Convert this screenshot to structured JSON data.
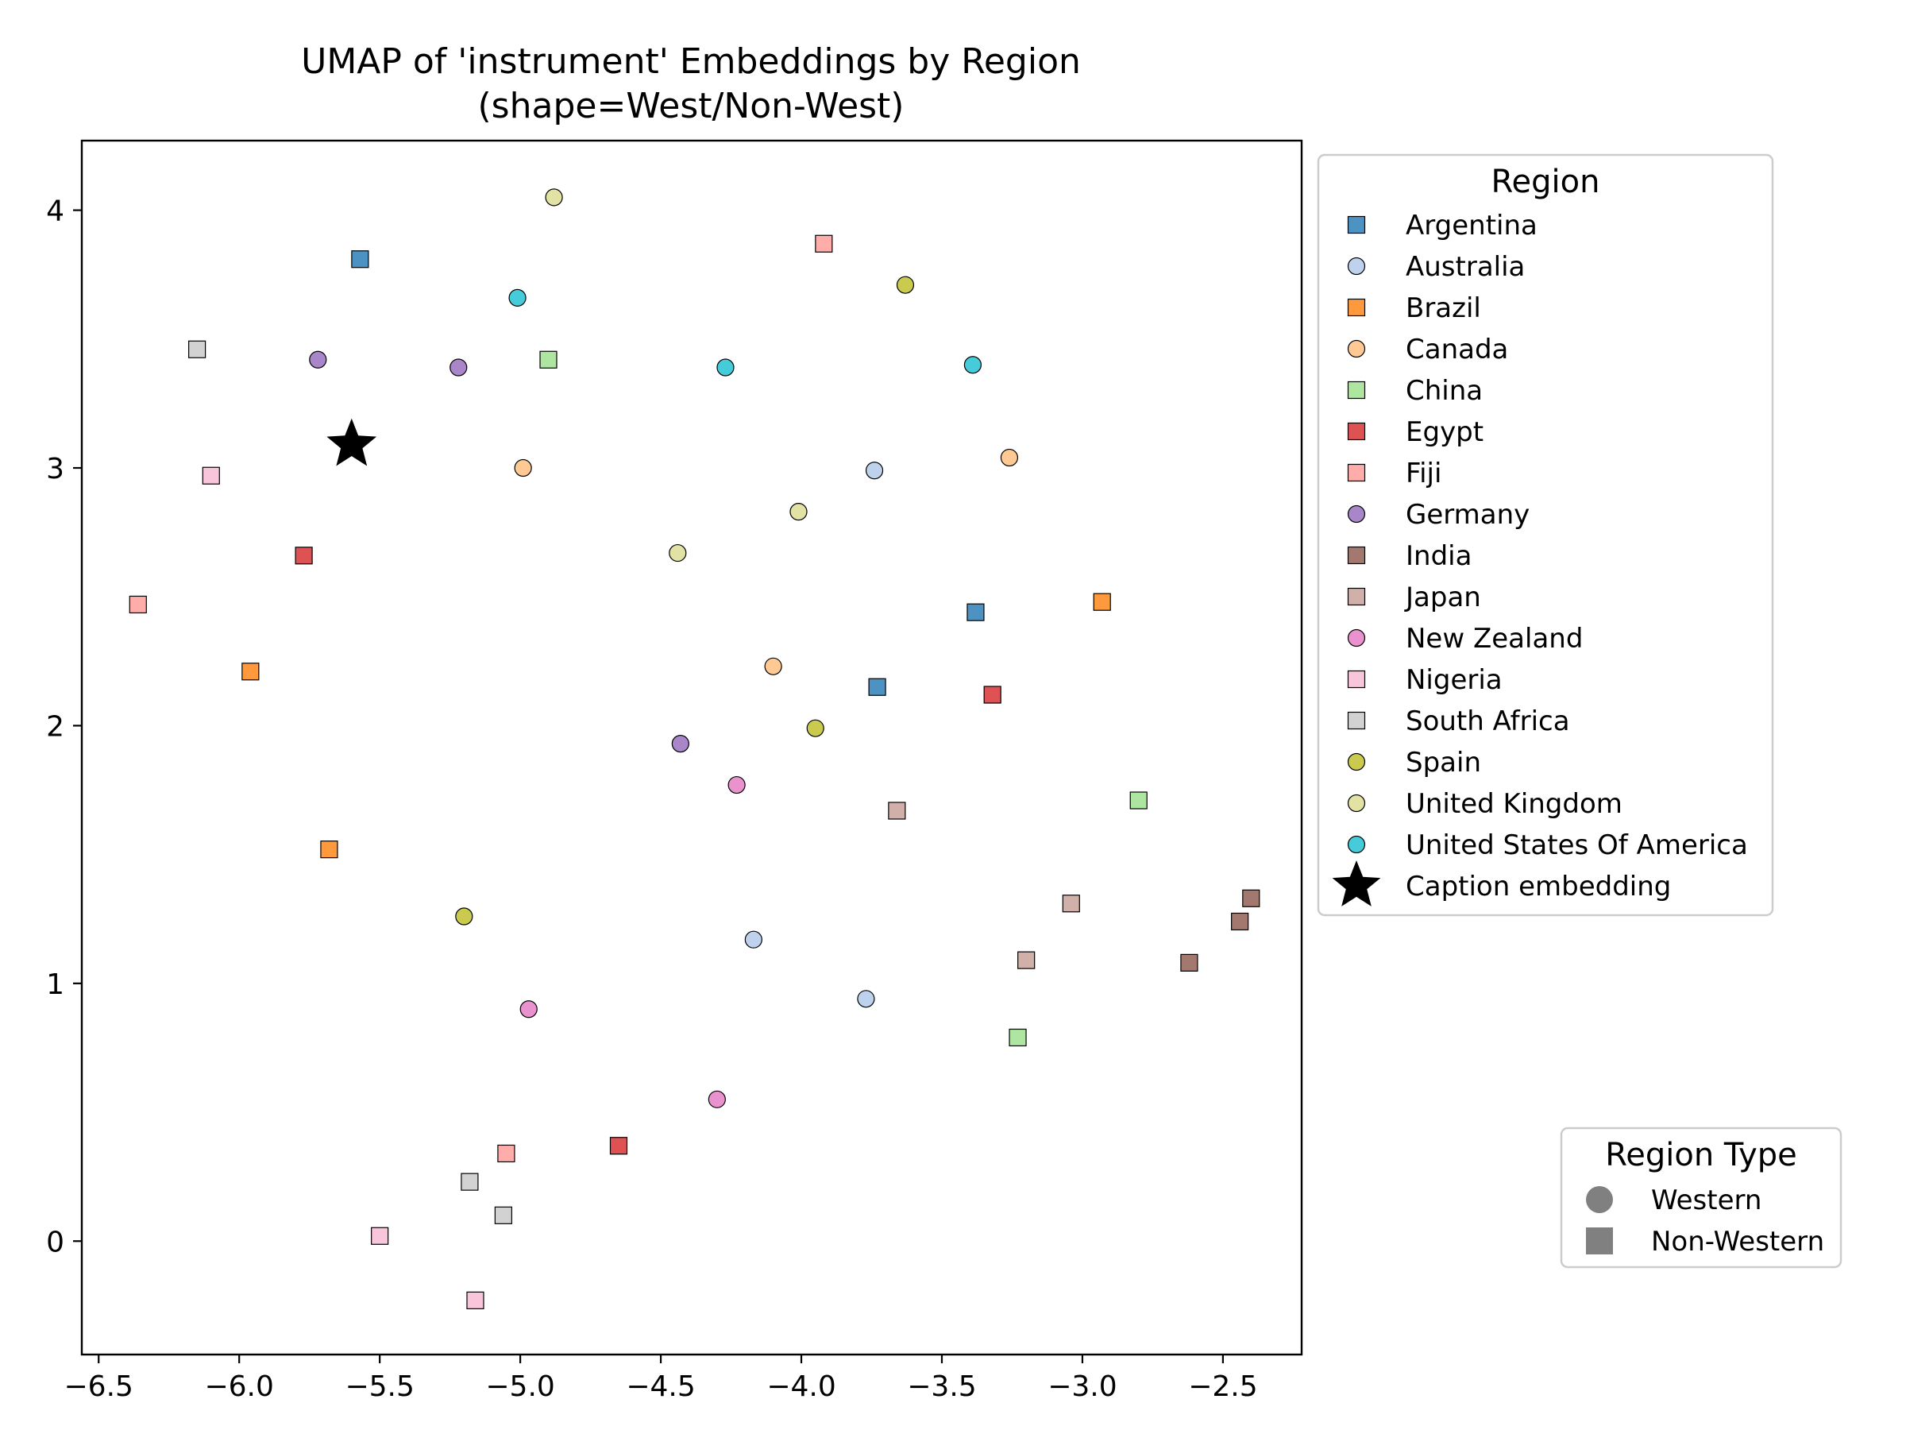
{
  "chart_data": {
    "type": "scatter",
    "title": "UMAP of 'instrument' Embeddings by Region",
    "subtitle": "(shape=West/Non-West)",
    "xlabel": "",
    "ylabel": "",
    "xlim": [
      -6.56,
      -2.22
    ],
    "ylim": [
      -0.44,
      4.27
    ],
    "x_ticks": [
      -6.5,
      -6.0,
      -5.5,
      -5.0,
      -4.5,
      -4.0,
      -3.5,
      -3.0,
      -2.5
    ],
    "x_tick_labels": [
      "−6.5",
      "−6.0",
      "−5.5",
      "−5.0",
      "−4.5",
      "−4.0",
      "−3.5",
      "−3.0",
      "−2.5"
    ],
    "y_ticks": [
      0,
      1,
      2,
      3,
      4
    ],
    "y_tick_labels": [
      "0",
      "1",
      "2",
      "3",
      "4"
    ],
    "grid": false,
    "legend": {
      "title": "Region",
      "placement": "outside-right-top",
      "caption_label": "Caption embedding"
    },
    "shape_legend": {
      "title": "Region Type",
      "placement": "outside-right-bottom",
      "items": [
        {
          "label": "Western",
          "marker": "circle"
        },
        {
          "label": "Non-Western",
          "marker": "square"
        }
      ]
    },
    "series": [
      {
        "name": "Argentina",
        "color": "#1f77b4",
        "marker": "square",
        "points": [
          [
            -5.57,
            3.81
          ],
          [
            -3.38,
            2.44
          ],
          [
            -3.73,
            2.15
          ]
        ]
      },
      {
        "name": "Australia",
        "color": "#aec7e8",
        "marker": "circle",
        "points": [
          [
            -3.74,
            2.99
          ],
          [
            -4.17,
            1.17
          ],
          [
            -3.77,
            0.94
          ]
        ]
      },
      {
        "name": "Brazil",
        "color": "#ff7f0e",
        "marker": "square",
        "points": [
          [
            -5.96,
            2.21
          ],
          [
            -2.93,
            2.48
          ],
          [
            -5.68,
            1.52
          ]
        ]
      },
      {
        "name": "Canada",
        "color": "#ffbb78",
        "marker": "circle",
        "points": [
          [
            -4.99,
            3.0
          ],
          [
            -3.26,
            3.04
          ],
          [
            -4.1,
            2.23
          ]
        ]
      },
      {
        "name": "China",
        "color": "#98df8a",
        "marker": "square",
        "points": [
          [
            -4.9,
            3.42
          ],
          [
            -2.8,
            1.71
          ],
          [
            -3.23,
            0.79
          ]
        ]
      },
      {
        "name": "Egypt",
        "color": "#d62728",
        "marker": "square",
        "points": [
          [
            -5.77,
            2.66
          ],
          [
            -3.32,
            2.12
          ],
          [
            -4.65,
            0.37
          ]
        ]
      },
      {
        "name": "Fiji",
        "color": "#ff9896",
        "marker": "square",
        "points": [
          [
            -6.36,
            2.47
          ],
          [
            -3.92,
            3.87
          ],
          [
            -5.05,
            0.34
          ]
        ]
      },
      {
        "name": "Germany",
        "color": "#9467bd",
        "marker": "circle",
        "points": [
          [
            -5.72,
            3.42
          ],
          [
            -5.22,
            3.39
          ],
          [
            -4.43,
            1.93
          ]
        ]
      },
      {
        "name": "India",
        "color": "#8c564b",
        "marker": "square",
        "points": [
          [
            -2.4,
            1.33
          ],
          [
            -2.44,
            1.24
          ],
          [
            -2.62,
            1.08
          ]
        ]
      },
      {
        "name": "Japan",
        "color": "#c49c94",
        "marker": "square",
        "points": [
          [
            -3.66,
            1.67
          ],
          [
            -3.04,
            1.31
          ],
          [
            -3.2,
            1.09
          ]
        ]
      },
      {
        "name": "New Zealand",
        "color": "#e377c2",
        "marker": "circle",
        "points": [
          [
            -4.23,
            1.77
          ],
          [
            -4.97,
            0.9
          ],
          [
            -4.3,
            0.55
          ]
        ]
      },
      {
        "name": "Nigeria",
        "color": "#f7b6d2",
        "marker": "square",
        "points": [
          [
            -6.1,
            2.97
          ],
          [
            -5.5,
            0.02
          ],
          [
            -5.16,
            -0.23
          ]
        ]
      },
      {
        "name": "South Africa",
        "color": "#c7c7c7",
        "marker": "square",
        "points": [
          [
            -6.15,
            3.46
          ],
          [
            -5.18,
            0.23
          ],
          [
            -5.06,
            0.1
          ]
        ]
      },
      {
        "name": "Spain",
        "color": "#bcbd22",
        "marker": "circle",
        "points": [
          [
            -3.63,
            3.71
          ],
          [
            -3.95,
            1.99
          ],
          [
            -5.2,
            1.26
          ]
        ]
      },
      {
        "name": "United Kingdom",
        "color": "#dbdb8d",
        "marker": "circle",
        "points": [
          [
            -4.88,
            4.05
          ],
          [
            -4.01,
            2.83
          ],
          [
            -4.44,
            2.67
          ]
        ]
      },
      {
        "name": "United States Of America",
        "color": "#17becf",
        "marker": "circle",
        "points": [
          [
            -5.01,
            3.66
          ],
          [
            -4.27,
            3.39
          ],
          [
            -3.39,
            3.4
          ]
        ]
      }
    ],
    "caption_point": {
      "name": "Caption embedding",
      "color": "#000000",
      "marker": "star",
      "x": -5.6,
      "y": 3.09
    }
  }
}
